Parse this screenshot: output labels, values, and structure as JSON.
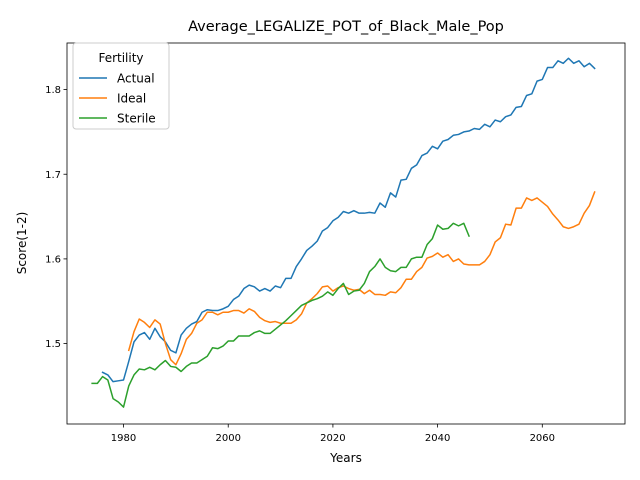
{
  "chart_data": {
    "type": "line",
    "title": "Average_LEGALIZE_POT_of_Black_Male_Pop",
    "xlabel": "Years",
    "ylabel": "Score(1-2)",
    "xlim": [
      1969.2,
      2075.8
    ],
    "ylim": [
      1.405,
      1.855
    ],
    "xticks": [
      1980,
      2000,
      2020,
      2040,
      2060
    ],
    "yticks": [
      1.5,
      1.6,
      1.7,
      1.8
    ],
    "ytick_labels": [
      "1.5",
      "1.6",
      "1.7",
      "1.8"
    ],
    "grid": false,
    "legend": {
      "title": "Fertility",
      "placement": "top-left"
    },
    "series": [
      {
        "name": "Actual",
        "color": "#1f77b4",
        "points": [
          [
            1976,
            1.466
          ],
          [
            1977,
            1.463
          ],
          [
            1978,
            1.455
          ],
          [
            1979,
            1.456
          ],
          [
            1980,
            1.457
          ],
          [
            1981,
            1.479
          ],
          [
            1982,
            1.502
          ],
          [
            1983,
            1.51
          ],
          [
            1984,
            1.513
          ],
          [
            1985,
            1.505
          ],
          [
            1986,
            1.518
          ],
          [
            1987,
            1.508
          ],
          [
            1988,
            1.502
          ],
          [
            1989,
            1.492
          ],
          [
            1990,
            1.489
          ],
          [
            1991,
            1.51
          ],
          [
            1992,
            1.518
          ],
          [
            1993,
            1.523
          ],
          [
            1994,
            1.526
          ],
          [
            1995,
            1.537
          ],
          [
            1996,
            1.54
          ],
          [
            1997,
            1.539
          ],
          [
            1998,
            1.539
          ],
          [
            1999,
            1.541
          ],
          [
            2000,
            1.544
          ],
          [
            2001,
            1.552
          ],
          [
            2002,
            1.556
          ],
          [
            2003,
            1.565
          ],
          [
            2004,
            1.569
          ],
          [
            2005,
            1.567
          ],
          [
            2006,
            1.562
          ],
          [
            2007,
            1.565
          ],
          [
            2008,
            1.562
          ],
          [
            2009,
            1.568
          ],
          [
            2010,
            1.566
          ],
          [
            2011,
            1.577
          ],
          [
            2012,
            1.577
          ],
          [
            2013,
            1.591
          ],
          [
            2014,
            1.6
          ],
          [
            2015,
            1.61
          ],
          [
            2016,
            1.615
          ],
          [
            2017,
            1.621
          ],
          [
            2018,
            1.633
          ],
          [
            2019,
            1.637
          ],
          [
            2020,
            1.645
          ],
          [
            2021,
            1.649
          ],
          [
            2022,
            1.656
          ],
          [
            2023,
            1.654
          ],
          [
            2024,
            1.657
          ],
          [
            2025,
            1.654
          ],
          [
            2026,
            1.654
          ],
          [
            2027,
            1.655
          ],
          [
            2028,
            1.654
          ],
          [
            2029,
            1.666
          ],
          [
            2030,
            1.661
          ],
          [
            2031,
            1.678
          ],
          [
            2032,
            1.673
          ],
          [
            2033,
            1.693
          ],
          [
            2034,
            1.694
          ],
          [
            2035,
            1.707
          ],
          [
            2036,
            1.711
          ],
          [
            2037,
            1.722
          ],
          [
            2038,
            1.725
          ],
          [
            2039,
            1.733
          ],
          [
            2040,
            1.73
          ],
          [
            2041,
            1.739
          ],
          [
            2042,
            1.741
          ],
          [
            2043,
            1.746
          ],
          [
            2044,
            1.747
          ],
          [
            2045,
            1.75
          ],
          [
            2046,
            1.751
          ],
          [
            2047,
            1.754
          ],
          [
            2048,
            1.753
          ],
          [
            2049,
            1.759
          ],
          [
            2050,
            1.756
          ],
          [
            2051,
            1.764
          ],
          [
            2052,
            1.762
          ],
          [
            2053,
            1.768
          ],
          [
            2054,
            1.77
          ],
          [
            2055,
            1.779
          ],
          [
            2056,
            1.78
          ],
          [
            2057,
            1.793
          ],
          [
            2058,
            1.795
          ],
          [
            2059,
            1.81
          ],
          [
            2060,
            1.812
          ],
          [
            2061,
            1.826
          ],
          [
            2062,
            1.826
          ],
          [
            2063,
            1.834
          ],
          [
            2064,
            1.831
          ],
          [
            2065,
            1.837
          ],
          [
            2066,
            1.831
          ],
          [
            2067,
            1.834
          ],
          [
            2068,
            1.827
          ],
          [
            2069,
            1.831
          ],
          [
            2070,
            1.825
          ]
        ]
      },
      {
        "name": "Ideal",
        "color": "#ff7f0e",
        "points": [
          [
            1981,
            1.492
          ],
          [
            1982,
            1.514
          ],
          [
            1983,
            1.529
          ],
          [
            1984,
            1.525
          ],
          [
            1985,
            1.519
          ],
          [
            1986,
            1.528
          ],
          [
            1987,
            1.523
          ],
          [
            1988,
            1.5
          ],
          [
            1989,
            1.481
          ],
          [
            1990,
            1.475
          ],
          [
            1991,
            1.488
          ],
          [
            1992,
            1.505
          ],
          [
            1993,
            1.512
          ],
          [
            1994,
            1.524
          ],
          [
            1995,
            1.528
          ],
          [
            1996,
            1.537
          ],
          [
            1997,
            1.537
          ],
          [
            1998,
            1.534
          ],
          [
            1999,
            1.537
          ],
          [
            2000,
            1.537
          ],
          [
            2001,
            1.539
          ],
          [
            2002,
            1.539
          ],
          [
            2003,
            1.536
          ],
          [
            2004,
            1.541
          ],
          [
            2005,
            1.538
          ],
          [
            2006,
            1.531
          ],
          [
            2007,
            1.527
          ],
          [
            2008,
            1.525
          ],
          [
            2009,
            1.526
          ],
          [
            2010,
            1.524
          ],
          [
            2011,
            1.524
          ],
          [
            2012,
            1.524
          ],
          [
            2013,
            1.528
          ],
          [
            2014,
            1.535
          ],
          [
            2015,
            1.548
          ],
          [
            2016,
            1.553
          ],
          [
            2017,
            1.559
          ],
          [
            2018,
            1.567
          ],
          [
            2019,
            1.568
          ],
          [
            2020,
            1.562
          ],
          [
            2021,
            1.566
          ],
          [
            2022,
            1.568
          ],
          [
            2023,
            1.565
          ],
          [
            2024,
            1.563
          ],
          [
            2025,
            1.564
          ],
          [
            2026,
            1.559
          ],
          [
            2027,
            1.563
          ],
          [
            2028,
            1.558
          ],
          [
            2029,
            1.558
          ],
          [
            2030,
            1.557
          ],
          [
            2031,
            1.561
          ],
          [
            2032,
            1.56
          ],
          [
            2033,
            1.566
          ],
          [
            2034,
            1.576
          ],
          [
            2035,
            1.576
          ],
          [
            2036,
            1.585
          ],
          [
            2037,
            1.59
          ],
          [
            2038,
            1.601
          ],
          [
            2039,
            1.603
          ],
          [
            2040,
            1.607
          ],
          [
            2041,
            1.602
          ],
          [
            2042,
            1.605
          ],
          [
            2043,
            1.597
          ],
          [
            2044,
            1.6
          ],
          [
            2045,
            1.594
          ],
          [
            2046,
            1.593
          ],
          [
            2047,
            1.593
          ],
          [
            2048,
            1.593
          ],
          [
            2049,
            1.597
          ],
          [
            2050,
            1.605
          ],
          [
            2051,
            1.62
          ],
          [
            2052,
            1.625
          ],
          [
            2053,
            1.641
          ],
          [
            2054,
            1.64
          ],
          [
            2055,
            1.66
          ],
          [
            2056,
            1.66
          ],
          [
            2057,
            1.672
          ],
          [
            2058,
            1.669
          ],
          [
            2059,
            1.672
          ],
          [
            2060,
            1.667
          ],
          [
            2061,
            1.662
          ],
          [
            2062,
            1.653
          ],
          [
            2063,
            1.646
          ],
          [
            2064,
            1.638
          ],
          [
            2065,
            1.636
          ],
          [
            2066,
            1.638
          ],
          [
            2067,
            1.641
          ],
          [
            2068,
            1.654
          ],
          [
            2069,
            1.663
          ],
          [
            2070,
            1.679
          ]
        ]
      },
      {
        "name": "Sterile",
        "color": "#2ca02c",
        "points": [
          [
            1974,
            1.453
          ],
          [
            1975,
            1.453
          ],
          [
            1976,
            1.461
          ],
          [
            1977,
            1.457
          ],
          [
            1978,
            1.435
          ],
          [
            1979,
            1.431
          ],
          [
            1980,
            1.425
          ],
          [
            1981,
            1.45
          ],
          [
            1982,
            1.463
          ],
          [
            1983,
            1.47
          ],
          [
            1984,
            1.469
          ],
          [
            1985,
            1.472
          ],
          [
            1986,
            1.469
          ],
          [
            1987,
            1.475
          ],
          [
            1988,
            1.48
          ],
          [
            1989,
            1.473
          ],
          [
            1990,
            1.472
          ],
          [
            1991,
            1.467
          ],
          [
            1992,
            1.473
          ],
          [
            1993,
            1.477
          ],
          [
            1994,
            1.477
          ],
          [
            1995,
            1.481
          ],
          [
            1996,
            1.485
          ],
          [
            1997,
            1.495
          ],
          [
            1998,
            1.494
          ],
          [
            1999,
            1.497
          ],
          [
            2000,
            1.503
          ],
          [
            2001,
            1.503
          ],
          [
            2002,
            1.509
          ],
          [
            2003,
            1.509
          ],
          [
            2004,
            1.509
          ],
          [
            2005,
            1.513
          ],
          [
            2006,
            1.515
          ],
          [
            2007,
            1.512
          ],
          [
            2008,
            1.512
          ],
          [
            2009,
            1.517
          ],
          [
            2010,
            1.522
          ],
          [
            2011,
            1.527
          ],
          [
            2012,
            1.533
          ],
          [
            2013,
            1.539
          ],
          [
            2014,
            1.545
          ],
          [
            2015,
            1.548
          ],
          [
            2016,
            1.551
          ],
          [
            2017,
            1.553
          ],
          [
            2018,
            1.556
          ],
          [
            2019,
            1.561
          ],
          [
            2020,
            1.557
          ],
          [
            2021,
            1.565
          ],
          [
            2022,
            1.571
          ],
          [
            2023,
            1.558
          ],
          [
            2024,
            1.562
          ],
          [
            2025,
            1.563
          ],
          [
            2026,
            1.571
          ],
          [
            2027,
            1.585
          ],
          [
            2028,
            1.591
          ],
          [
            2029,
            1.6
          ],
          [
            2030,
            1.59
          ],
          [
            2031,
            1.586
          ],
          [
            2032,
            1.585
          ],
          [
            2033,
            1.59
          ],
          [
            2034,
            1.59
          ],
          [
            2035,
            1.6
          ],
          [
            2036,
            1.602
          ],
          [
            2037,
            1.602
          ],
          [
            2038,
            1.617
          ],
          [
            2039,
            1.624
          ],
          [
            2040,
            1.64
          ],
          [
            2041,
            1.635
          ],
          [
            2042,
            1.636
          ],
          [
            2043,
            1.642
          ],
          [
            2044,
            1.639
          ],
          [
            2045,
            1.642
          ],
          [
            2046,
            1.627
          ]
        ]
      }
    ]
  }
}
